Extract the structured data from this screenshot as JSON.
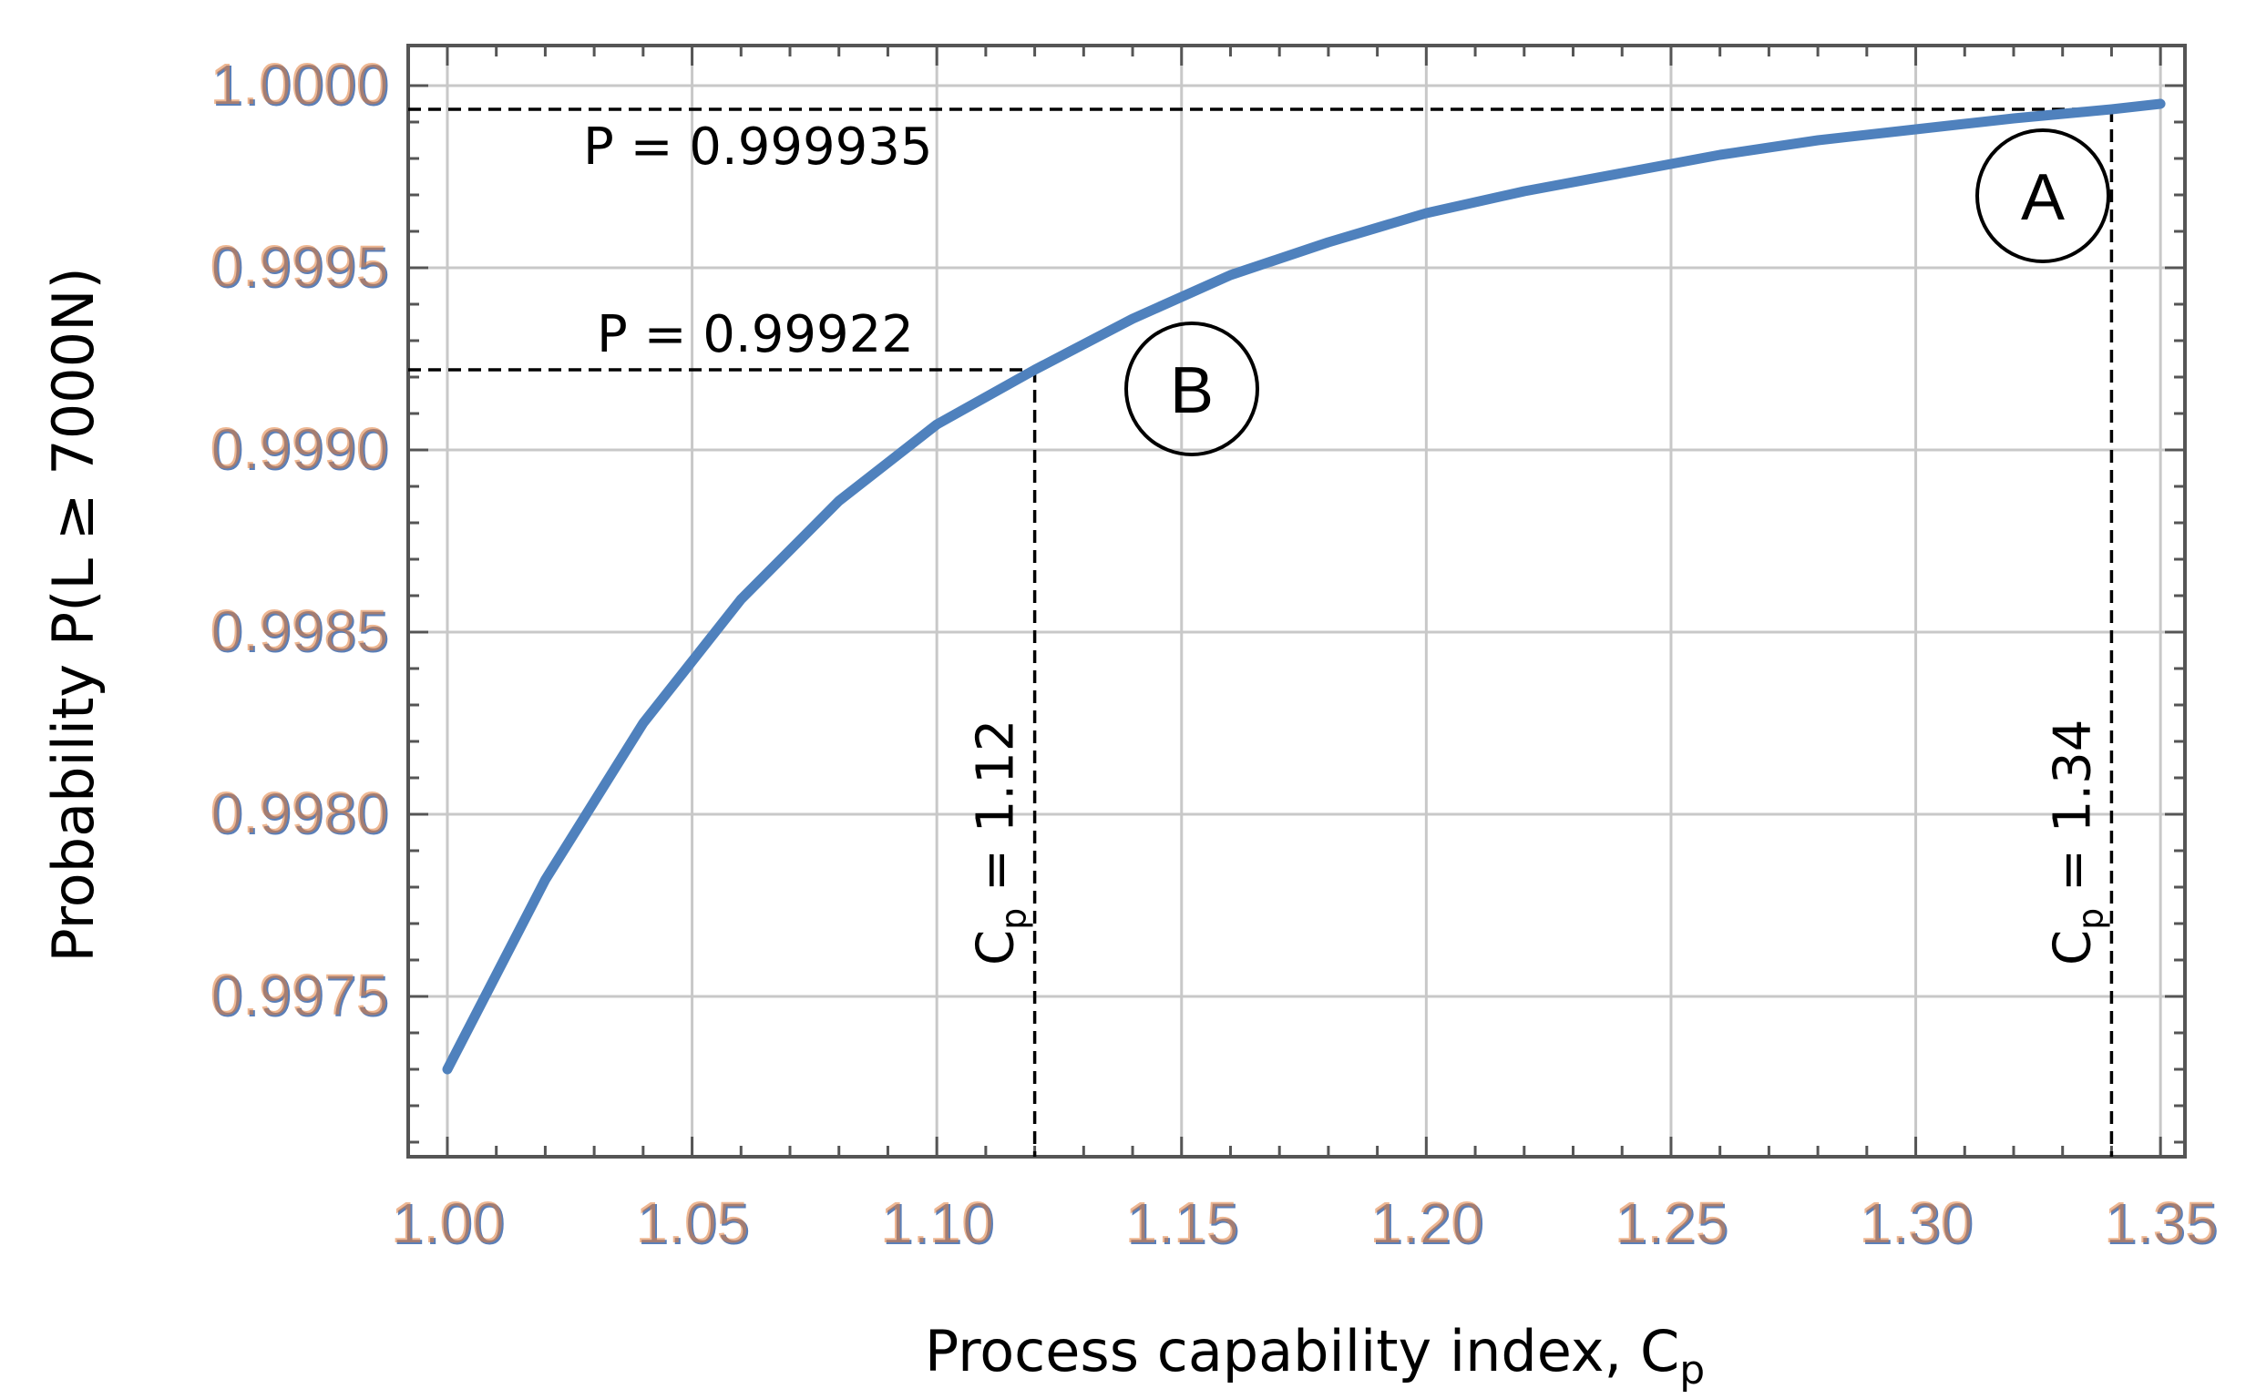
{
  "chart_data": {
    "type": "line",
    "xlabel": "Process capability index, C",
    "xlabel_sub": "p",
    "ylabel": "Probability P(L ≥ 7000N)",
    "xlim": [
      0.992,
      1.355
    ],
    "ylim": [
      0.99706,
      1.00011
    ],
    "x_ticks": [
      "1.00",
      "1.05",
      "1.10",
      "1.15",
      "1.20",
      "1.25",
      "1.30",
      "1.35"
    ],
    "x_tick_values": [
      1.0,
      1.05,
      1.1,
      1.15,
      1.2,
      1.25,
      1.3,
      1.35
    ],
    "y_ticks": [
      "0.9975",
      "0.9980",
      "0.9985",
      "0.9990",
      "0.9995",
      "1.0000"
    ],
    "y_tick_values": [
      0.9975,
      0.998,
      0.9985,
      0.999,
      0.9995,
      1.0
    ],
    "grid": true,
    "tick_label_color": "#e07b39",
    "tick_label_blue": "#5b7fb8",
    "line_color": "#4f81bd",
    "series": [
      {
        "x": [
          1.0,
          1.02,
          1.04,
          1.06,
          1.08,
          1.1,
          1.12,
          1.14,
          1.16,
          1.18,
          1.2,
          1.22,
          1.24,
          1.26,
          1.28,
          1.3,
          1.32,
          1.34,
          1.35
        ],
        "values": [
          0.9973,
          0.99782,
          0.99825,
          0.99859,
          0.99886,
          0.99907,
          0.99922,
          0.99936,
          0.99948,
          0.99957,
          0.99965,
          0.99971,
          0.99976,
          0.99981,
          0.99985,
          0.99988,
          0.99991,
          0.999935,
          0.99995
        ]
      }
    ],
    "annotations": {
      "pA_label": "P = 0.999935",
      "pB_label": "P = 0.99922",
      "pA_value": 0.999935,
      "pB_value": 0.99922,
      "cpA_label_main": "C",
      "cpA_label_sub": "p",
      "cpA_label_rest": " = 1.34",
      "cpB_label_main": "C",
      "cpB_label_sub": "p",
      "cpB_label_rest": " = 1.12",
      "cpA_value": 1.34,
      "cpB_value": 1.12,
      "point_A_label": "A",
      "point_B_label": "B"
    }
  }
}
